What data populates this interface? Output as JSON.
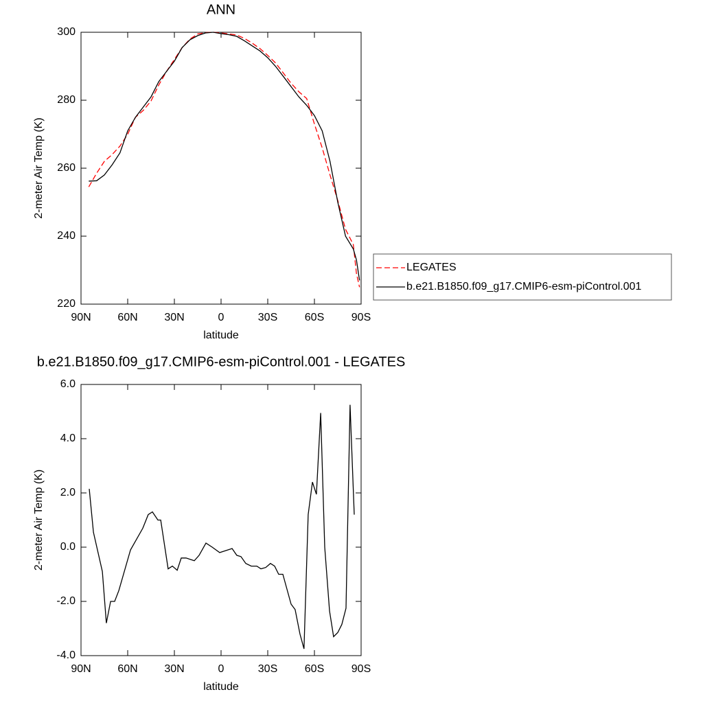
{
  "chart_data": [
    {
      "type": "line",
      "title": "ANN",
      "xlabel": "latitude",
      "ylabel": "2-meter Air Temp (K)",
      "x": [
        85,
        80,
        75,
        70,
        65,
        60,
        55,
        50,
        45,
        40,
        35,
        30,
        25,
        20,
        15,
        10,
        5,
        0,
        -5,
        -10,
        -15,
        -20,
        -25,
        -30,
        -35,
        -40,
        -45,
        -50,
        -55,
        -60,
        -65,
        -70,
        -75,
        -80,
        -85,
        -87,
        -89
      ],
      "series": [
        {
          "name": "LEGATES",
          "color": "#ff0000",
          "line_style": "dashed",
          "values": [
            254.5,
            258.5,
            262,
            264,
            266.5,
            270,
            275,
            277,
            279.8,
            284.5,
            288.5,
            292,
            295.5,
            298,
            299.5,
            299.9,
            300,
            299.8,
            299.5,
            299.2,
            298.2,
            296.8,
            295.2,
            293.2,
            291,
            288,
            285,
            282.5,
            280.5,
            273,
            266,
            258,
            250.5,
            242,
            237.5,
            229,
            225
          ]
        },
        {
          "name": "b.e21.B1850.f09_g17.CMIP6-esm-piControl.001",
          "color": "#000000",
          "line_style": "solid",
          "values": [
            256.2,
            256.3,
            258,
            261,
            264.5,
            271,
            275,
            278,
            281,
            285.5,
            288.5,
            291.5,
            295.5,
            297.8,
            299,
            299.8,
            300,
            299.6,
            299.3,
            298.8,
            297.5,
            296,
            294.5,
            292.5,
            290,
            287,
            284,
            281,
            278.5,
            275.5,
            271,
            262,
            250,
            240,
            236.2,
            233,
            227
          ]
        }
      ],
      "xlim": [
        90,
        -90
      ],
      "xticks": [
        {
          "value": 90,
          "label": "90N"
        },
        {
          "value": 60,
          "label": "60N"
        },
        {
          "value": 30,
          "label": "30N"
        },
        0,
        {
          "value": -30,
          "label": "30S"
        },
        {
          "value": -60,
          "label": "60S"
        },
        {
          "value": -90,
          "label": "90S"
        }
      ],
      "ylim": [
        220,
        300
      ],
      "yticks": [
        220,
        240,
        260,
        280,
        300
      ],
      "legend": "right"
    },
    {
      "type": "line",
      "title": "b.e21.B1850.f09_g17.CMIP6-esm-piControl.001 - LEGATES",
      "xlabel": "latitude",
      "ylabel": "2-meter Air Temp (K)",
      "x": [
        84.7,
        82,
        76.3,
        73.7,
        71,
        68.4,
        65.7,
        58.2,
        50.3,
        46.8,
        44.1,
        40.6,
        38.8,
        34,
        31.3,
        28.2,
        25.6,
        22.5,
        17.2,
        14.1,
        9.7,
        5.7,
        0.9,
        -7.1,
        -10.1,
        -12.8,
        -15.9,
        -19.4,
        -23,
        -25.6,
        -28.7,
        -31.7,
        -34.4,
        -37,
        -39.7,
        -45,
        -47.6,
        -50.7,
        -53.3,
        -56,
        -58.7,
        -61.3,
        -64,
        -66.6,
        -69.7,
        -72.3,
        -75,
        -77.6,
        -80.3,
        -82.9,
        -85.6
      ],
      "series": [
        {
          "color": "#000000",
          "line_style": "solid",
          "values": [
            2.15,
            0.55,
            -0.9,
            -2.8,
            -2.0,
            -2.0,
            -1.6,
            -0.1,
            0.7,
            1.2,
            1.3,
            1.0,
            1.0,
            -0.8,
            -0.7,
            -0.85,
            -0.4,
            -0.4,
            -0.5,
            -0.3,
            0.15,
            0.0,
            -0.2,
            -0.05,
            -0.3,
            -0.35,
            -0.6,
            -0.7,
            -0.7,
            -0.8,
            -0.75,
            -0.6,
            -0.7,
            -1.0,
            -1.0,
            -2.1,
            -2.3,
            -3.2,
            -3.75,
            1.2,
            2.4,
            1.95,
            4.95,
            0.0,
            -2.35,
            -3.3,
            -3.15,
            -2.85,
            -2.25,
            5.25,
            1.2
          ]
        }
      ],
      "xlim": [
        90,
        -90
      ],
      "xticks": [
        {
          "value": 90,
          "label": "90N"
        },
        {
          "value": 60,
          "label": "60N"
        },
        {
          "value": 30,
          "label": "30N"
        },
        0,
        {
          "value": -30,
          "label": "30S"
        },
        {
          "value": -60,
          "label": "60S"
        },
        {
          "value": -90,
          "label": "90S"
        }
      ],
      "ylim": [
        -4,
        6
      ],
      "yticks": [
        {
          "value": -4,
          "label": "-4.0"
        },
        {
          "value": -2,
          "label": "-2.0"
        },
        {
          "value": 0,
          "label": "0.0"
        },
        {
          "value": 2,
          "label": "2.0"
        },
        {
          "value": 4,
          "label": "4.0"
        },
        {
          "value": 6,
          "label": "6.0"
        }
      ]
    }
  ]
}
